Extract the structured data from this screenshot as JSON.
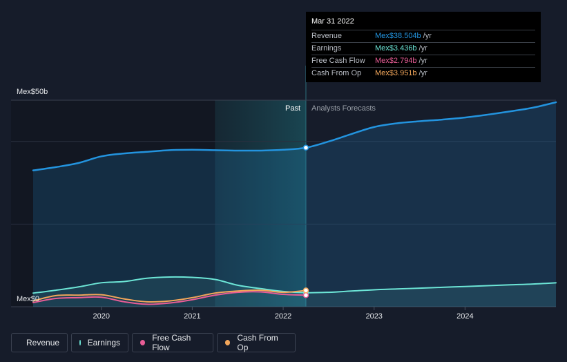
{
  "tooltip": {
    "date": "Mar 31 2022",
    "rows": [
      {
        "label": "Revenue",
        "value": "Mex$38.504b",
        "unit": "/yr",
        "color": "#2394df"
      },
      {
        "label": "Earnings",
        "value": "Mex$3.436b",
        "unit": "/yr",
        "color": "#6ce5d6"
      },
      {
        "label": "Free Cash Flow",
        "value": "Mex$2.794b",
        "unit": "/yr",
        "color": "#e85d96"
      },
      {
        "label": "Cash From Op",
        "value": "Mex$3.951b",
        "unit": "/yr",
        "color": "#f2a65a"
      }
    ]
  },
  "legend": [
    {
      "label": "Revenue",
      "color": "#2394df"
    },
    {
      "label": "Earnings",
      "color": "#6ce5d6"
    },
    {
      "label": "Free Cash Flow",
      "color": "#e85d96"
    },
    {
      "label": "Cash From Op",
      "color": "#f2a65a"
    }
  ],
  "chart_data": {
    "type": "line",
    "title": "",
    "y_top_label": "Mex$50b",
    "y_bottom_label": "Mex$0",
    "ylim": [
      0,
      50
    ],
    "xlim": [
      2019.25,
      2025.0
    ],
    "x_ticks": [
      2020,
      2021,
      2022,
      2023,
      2024
    ],
    "x_tick_labels": [
      "2020",
      "2021",
      "2022",
      "2023",
      "2024"
    ],
    "past_label": "Past",
    "forecast_label": "Analysts Forecasts",
    "divider_x": 2022.25,
    "highlight_start_x": 2021.25,
    "grid": true,
    "series": [
      {
        "name": "Revenue",
        "color": "#2394df",
        "area": true,
        "x": [
          2019.25,
          2019.5,
          2019.75,
          2020.0,
          2020.25,
          2020.5,
          2020.75,
          2021.0,
          2021.25,
          2021.5,
          2021.75,
          2022.0,
          2022.25,
          2022.5,
          2022.75,
          2023.0,
          2023.25,
          2023.5,
          2023.75,
          2024.0,
          2024.25,
          2024.5,
          2024.75,
          2025.0
        ],
        "values": [
          33.0,
          33.8,
          34.8,
          36.4,
          37.1,
          37.5,
          37.9,
          38.0,
          37.9,
          37.8,
          37.8,
          38.0,
          38.5,
          40.0,
          41.8,
          43.5,
          44.4,
          44.9,
          45.3,
          45.8,
          46.5,
          47.3,
          48.2,
          49.5
        ]
      },
      {
        "name": "Earnings",
        "color": "#6ce5d6",
        "area": true,
        "x": [
          2019.25,
          2019.5,
          2019.75,
          2020.0,
          2020.25,
          2020.5,
          2020.75,
          2021.0,
          2021.25,
          2021.5,
          2021.75,
          2022.0,
          2022.25,
          2022.5,
          2022.75,
          2023.0,
          2023.25,
          2023.5,
          2023.75,
          2024.0,
          2024.25,
          2024.5,
          2024.75,
          2025.0
        ],
        "values": [
          3.3,
          4.0,
          4.8,
          5.8,
          6.1,
          6.9,
          7.2,
          7.1,
          6.6,
          5.2,
          4.4,
          3.7,
          3.4,
          3.5,
          3.8,
          4.1,
          4.3,
          4.5,
          4.7,
          4.9,
          5.1,
          5.3,
          5.5,
          5.8
        ]
      },
      {
        "name": "Free Cash Flow",
        "color": "#e85d96",
        "area": false,
        "x": [
          2019.25,
          2019.5,
          2019.75,
          2020.0,
          2020.25,
          2020.5,
          2020.75,
          2021.0,
          2021.25,
          2021.5,
          2021.75,
          2022.0,
          2022.25
        ],
        "values": [
          1.0,
          2.0,
          2.2,
          2.3,
          1.2,
          0.6,
          0.9,
          1.7,
          2.8,
          3.5,
          3.6,
          3.0,
          2.8
        ]
      },
      {
        "name": "Cash From Op",
        "color": "#f2a65a",
        "area": false,
        "x": [
          2019.25,
          2019.5,
          2019.75,
          2020.0,
          2020.25,
          2020.5,
          2020.75,
          2021.0,
          2021.25,
          2021.5,
          2021.75,
          2022.0,
          2022.25
        ],
        "values": [
          1.4,
          2.7,
          2.8,
          2.9,
          1.9,
          1.2,
          1.4,
          2.2,
          3.3,
          3.8,
          4.0,
          3.5,
          3.95
        ]
      }
    ]
  }
}
